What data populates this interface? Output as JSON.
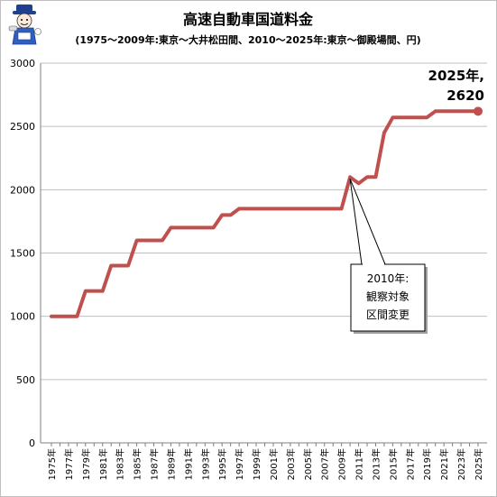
{
  "chart_data": {
    "type": "line",
    "title": "高速自動車国道料金",
    "subtitle": "(1975～2009年:東京～大井松田間、2010～2025年:東京～御殿場間、円)",
    "xlabel": "",
    "ylabel": "",
    "ylim": [
      0,
      3000
    ],
    "yticks": [
      "0",
      "500",
      "1000",
      "1500",
      "2000",
      "2500",
      "3000"
    ],
    "grid": true,
    "x": [
      1975,
      1976,
      1977,
      1978,
      1979,
      1980,
      1981,
      1982,
      1983,
      1984,
      1985,
      1986,
      1987,
      1988,
      1989,
      1990,
      1991,
      1992,
      1993,
      1994,
      1995,
      1996,
      1997,
      1998,
      1999,
      2000,
      2001,
      2002,
      2003,
      2004,
      2005,
      2006,
      2007,
      2008,
      2009,
      2010,
      2011,
      2012,
      2013,
      2014,
      2015,
      2016,
      2017,
      2018,
      2019,
      2020,
      2021,
      2022,
      2023,
      2024,
      2025
    ],
    "xtick_labels": [
      "1975年",
      "1977年",
      "1979年",
      "1981年",
      "1983年",
      "1985年",
      "1987年",
      "1989年",
      "1991年",
      "1993年",
      "1995年",
      "1997年",
      "1999年",
      "2001年",
      "2003年",
      "2005年",
      "2007年",
      "2009年",
      "2011年",
      "2013年",
      "2015年",
      "2017年",
      "2019年",
      "2021年",
      "2023年",
      "2025年"
    ],
    "series": [
      {
        "name": "",
        "color": "#c0504d",
        "values": [
          1000,
          1000,
          1000,
          1000,
          1200,
          1200,
          1200,
          1400,
          1400,
          1400,
          1600,
          1600,
          1600,
          1600,
          1700,
          1700,
          1700,
          1700,
          1700,
          1700,
          1800,
          1800,
          1850,
          1850,
          1850,
          1850,
          1850,
          1850,
          1850,
          1850,
          1850,
          1850,
          1850,
          1850,
          1850,
          2100,
          2050,
          2100,
          2100,
          2450,
          2570,
          2570,
          2570,
          2570,
          2570,
          2620,
          2620,
          2620,
          2620,
          2620,
          2620
        ]
      }
    ],
    "annotations": [
      {
        "lines": [
          "2010年:",
          "観察対象",
          "区間変更"
        ],
        "target_x": 2010,
        "target_y": 2100
      },
      {
        "lines": [
          "2025年,",
          "2620"
        ],
        "target_x": 2025,
        "target_y": 2620
      }
    ]
  },
  "logo": {
    "icon": "mascot-icon"
  }
}
